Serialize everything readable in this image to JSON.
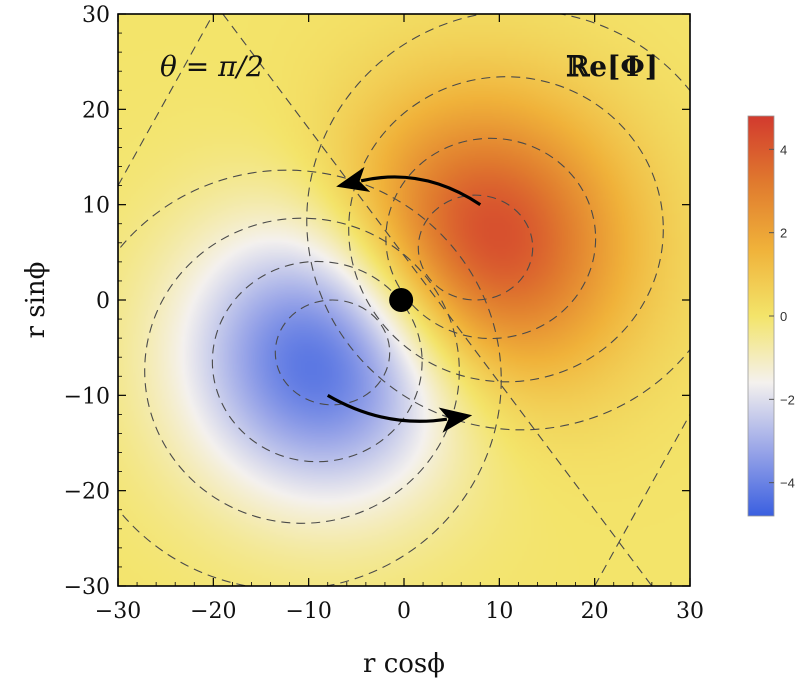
{
  "chart_data": {
    "type": "heatmap",
    "title": "",
    "xlabel": "r cosϕ",
    "ylabel": "r sinϕ",
    "xlim": [
      -30,
      30
    ],
    "ylim": [
      -30,
      30
    ],
    "xticks": [
      -30,
      -20,
      -10,
      0,
      10,
      20,
      30
    ],
    "yticks": [
      -30,
      -20,
      -10,
      0,
      10,
      20,
      30
    ],
    "xtick_labels": [
      "−30",
      "−20",
      "−10",
      "0",
      "10",
      "20",
      "30"
    ],
    "ytick_labels": [
      "−30",
      "−20",
      "−10",
      "0",
      "10",
      "20",
      "30"
    ],
    "annotations": {
      "theta": "θ = π/2",
      "field": "ℝe[Φ]"
    },
    "colorbar": {
      "range": [
        -4.8,
        4.8
      ],
      "ticks": [
        4,
        2,
        0,
        -2,
        -4
      ],
      "tick_labels": [
        "4",
        "2",
        "0",
        "−2",
        "−4"
      ],
      "colormap": [
        "#3a5fe0",
        "#9aa6e8",
        "#f4f1ee",
        "#f3e46a",
        "#f0b23a",
        "#e07a2e",
        "#d23a2e"
      ]
    },
    "field": {
      "description_values": "dipole-like field",
      "maximum": {
        "x": 7.5,
        "y": 5.5,
        "value": 4.8
      },
      "minimum": {
        "x": -7.5,
        "y": -5.5,
        "value": -4.8
      }
    },
    "markers": [
      {
        "name": "center",
        "x": -0.3,
        "y": 0
      }
    ],
    "arrows": [
      {
        "name": "upper",
        "from": [
          8,
          10
        ],
        "ctrl": [
          2,
          14
        ],
        "to": [
          -4.5,
          12.5
        ]
      },
      {
        "name": "lower",
        "from": [
          -8,
          -10
        ],
        "ctrl": [
          -2,
          -13.5
        ],
        "to": [
          4.5,
          -12.5
        ]
      }
    ],
    "grid": false,
    "legend": "colorbar right"
  }
}
